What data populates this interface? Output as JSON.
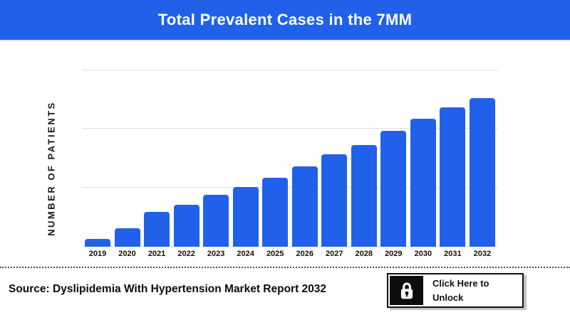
{
  "header": {
    "title": "Total Prevalent Cases in the 7MM"
  },
  "chart_data": {
    "type": "bar",
    "title": "Total Prevalent Cases in the 7MM",
    "categories": [
      "2019",
      "2020",
      "2021",
      "2022",
      "2023",
      "2024",
      "2025",
      "2026",
      "2027",
      "2028",
      "2029",
      "2030",
      "2031",
      "2032"
    ],
    "relative_values_pct": [
      5.1,
      12.6,
      23.7,
      28.2,
      34.9,
      40.2,
      46.2,
      54.2,
      62.0,
      68.4,
      78.0,
      86.1,
      93.9,
      100
    ],
    "values_note": "y-axis has no numeric tick labels; bar heights estimated as percent of tallest (2032) bar",
    "xlabel": "",
    "ylabel": "NUMBER OF PATIENTS",
    "y_tick_labels": [],
    "grid": "horizontal",
    "legend": "none",
    "bar_color": "#2161ea"
  },
  "footer": {
    "source": "Source: Dyslipidemia With Hypertension Market Report 2032",
    "unlock_button": {
      "line1": "Click Here to",
      "line2": "Unlock",
      "icon": "lock-icon"
    }
  },
  "colors": {
    "banner_blue": "#2161ea",
    "bar_blue": "#2161ea",
    "gridline": "#dfdfdf",
    "text_dark": "#101010",
    "button_shadow": "#c6c6c6",
    "background": "#ffffff"
  }
}
